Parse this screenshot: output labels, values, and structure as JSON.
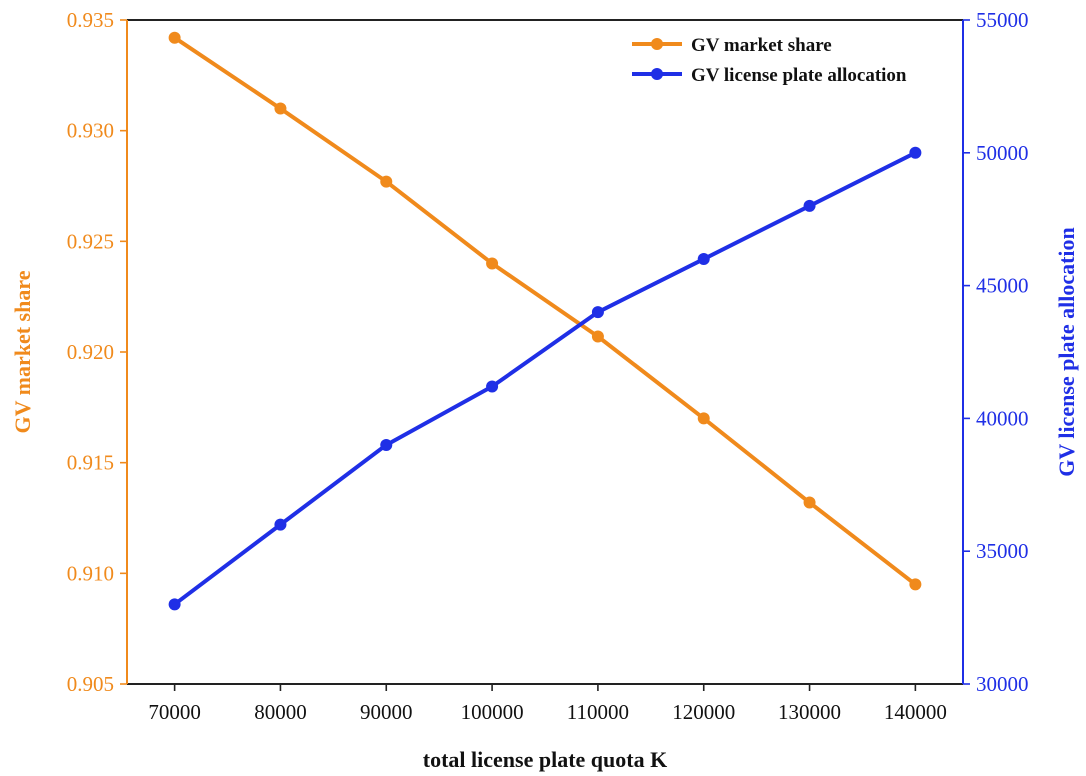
{
  "chart_data": {
    "type": "line",
    "xlabel": "total license plate quota K",
    "ylabel": "GV market share",
    "y2label": "GV license plate allocation",
    "x": [
      70000,
      80000,
      90000,
      100000,
      110000,
      120000,
      130000,
      140000
    ],
    "xlim": [
      65500,
      144500
    ],
    "ylim": [
      0.905,
      0.935
    ],
    "y2lim": [
      30000,
      55000
    ],
    "xticks": [
      "70000",
      "80000",
      "90000",
      "100000",
      "110000",
      "120000",
      "130000",
      "140000"
    ],
    "yticks": [
      "0.905",
      "0.910",
      "0.915",
      "0.920",
      "0.925",
      "0.930",
      "0.935"
    ],
    "y2ticks": [
      "30000",
      "35000",
      "40000",
      "45000",
      "50000",
      "55000"
    ],
    "grid": false,
    "legend_position": "top-right",
    "series": [
      {
        "name": "GV market share",
        "axis": "left",
        "color": "#f08a1c",
        "values": [
          0.9342,
          0.931,
          0.9277,
          0.924,
          0.9207,
          0.917,
          0.9132,
          0.9095
        ]
      },
      {
        "name": "GV license plate allocation",
        "axis": "right",
        "color": "#1f2fe6",
        "values": [
          33000,
          36000,
          39000,
          41200,
          44000,
          46000,
          48000,
          50000
        ]
      }
    ],
    "colors": {
      "left_axis": "#f08a1c",
      "right_axis": "#1f2fe6",
      "frame": "#222222"
    }
  }
}
